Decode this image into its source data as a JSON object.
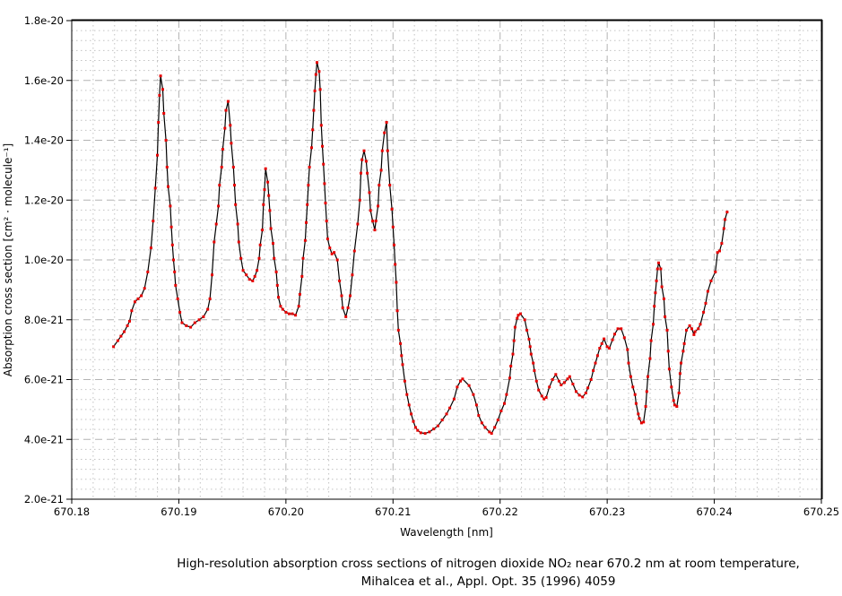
{
  "caption": {
    "line1": "High-resolution absorption cross sections of nitrogen dioxide NO₂ near 670.2 nm at room temperature,",
    "line2": "Mihalcea et al., Appl. Opt. 35 (1996) 4059"
  },
  "chart_data": {
    "type": "line",
    "title": "",
    "xlabel": "Wavelength [nm]",
    "ylabel": "Absorption cross section [cm² · molecule⁻¹]",
    "legend": "none",
    "grid": {
      "major_color": "#b3b3b3",
      "minor_color": "#c2c2c2",
      "major_dash": "8,5",
      "minor_dash": "1.5,3.5",
      "x_minor_divisions": 5,
      "y_minor_divisions": 6
    },
    "x_axis": {
      "min": 670.18,
      "max": 670.25,
      "major_step": 0.01,
      "tick_labels": [
        "670.18",
        "670.19",
        "670.20",
        "670.21",
        "670.22",
        "670.23",
        "670.24",
        "670.25"
      ]
    },
    "y_axis": {
      "unit": "cm2/molecule",
      "min_e21": 2,
      "max_e21": 18,
      "major_step_e21": 2,
      "tick_labels": [
        "2.0e-21",
        "4.0e-21",
        "6.0e-21",
        "8.0e-21",
        "1.0e-20",
        "1.2e-20",
        "1.4e-20",
        "1.6e-20",
        "1.8e-20"
      ]
    },
    "series": [
      {
        "name": "NO2 absorption cross section",
        "line_color": "#000000",
        "marker": "square",
        "marker_color": "#e60000",
        "y_unit": "1e-21 cm2 / molecule",
        "points": [
          [
            670.1839,
            7.1
          ],
          [
            670.1843,
            7.3
          ],
          [
            670.1846,
            7.45
          ],
          [
            670.1849,
            7.6
          ],
          [
            670.1852,
            7.8
          ],
          [
            670.1854,
            7.95
          ],
          [
            670.1856,
            8.3
          ],
          [
            670.1859,
            8.6
          ],
          [
            670.1862,
            8.7
          ],
          [
            670.1865,
            8.8
          ],
          [
            670.1868,
            9.05
          ],
          [
            670.1871,
            9.6
          ],
          [
            670.1874,
            10.4
          ],
          [
            670.1876,
            11.3
          ],
          [
            670.1878,
            12.4
          ],
          [
            670.188,
            13.5
          ],
          [
            670.1881,
            14.6
          ],
          [
            670.1882,
            15.5
          ],
          [
            670.1883,
            16.15
          ],
          [
            670.1885,
            15.7
          ],
          [
            670.1886,
            14.9
          ],
          [
            670.1888,
            14.0
          ],
          [
            670.1889,
            13.1
          ],
          [
            670.189,
            12.45
          ],
          [
            670.1892,
            11.8
          ],
          [
            670.1893,
            11.1
          ],
          [
            670.1894,
            10.5
          ],
          [
            670.1895,
            10.0
          ],
          [
            670.1896,
            9.6
          ],
          [
            670.1897,
            9.15
          ],
          [
            670.1899,
            8.7
          ],
          [
            670.1901,
            8.25
          ],
          [
            670.1903,
            7.9
          ],
          [
            670.1907,
            7.8
          ],
          [
            670.1911,
            7.75
          ],
          [
            670.1915,
            7.9
          ],
          [
            670.1919,
            8.0
          ],
          [
            670.1923,
            8.1
          ],
          [
            670.1927,
            8.35
          ],
          [
            670.1929,
            8.7
          ],
          [
            670.1931,
            9.5
          ],
          [
            670.1933,
            10.6
          ],
          [
            670.1935,
            11.2
          ],
          [
            670.1937,
            11.8
          ],
          [
            670.1938,
            12.5
          ],
          [
            670.194,
            13.1
          ],
          [
            670.1941,
            13.7
          ],
          [
            670.1943,
            14.4
          ],
          [
            670.1944,
            15.0
          ],
          [
            670.1946,
            15.3
          ],
          [
            670.1948,
            14.5
          ],
          [
            670.1949,
            13.9
          ],
          [
            670.1951,
            13.1
          ],
          [
            670.1952,
            12.5
          ],
          [
            670.1953,
            11.85
          ],
          [
            670.1955,
            11.2
          ],
          [
            670.1956,
            10.6
          ],
          [
            670.1958,
            10.05
          ],
          [
            670.196,
            9.65
          ],
          [
            670.1963,
            9.5
          ],
          [
            670.1966,
            9.35
          ],
          [
            670.1969,
            9.3
          ],
          [
            670.1971,
            9.45
          ],
          [
            670.1973,
            9.65
          ],
          [
            670.1975,
            10.05
          ],
          [
            670.1976,
            10.5
          ],
          [
            670.1978,
            11.0
          ],
          [
            670.1979,
            11.85
          ],
          [
            670.198,
            12.35
          ],
          [
            670.1981,
            13.05
          ],
          [
            670.1983,
            12.6
          ],
          [
            670.1984,
            12.15
          ],
          [
            670.1985,
            11.65
          ],
          [
            670.1986,
            11.05
          ],
          [
            670.1988,
            10.55
          ],
          [
            670.1989,
            10.05
          ],
          [
            670.1991,
            9.6
          ],
          [
            670.1992,
            9.15
          ],
          [
            670.1993,
            8.75
          ],
          [
            670.1995,
            8.45
          ],
          [
            670.1997,
            8.35
          ],
          [
            670.2,
            8.25
          ],
          [
            670.2003,
            8.2
          ],
          [
            670.2006,
            8.2
          ],
          [
            670.2009,
            8.15
          ],
          [
            670.2012,
            8.45
          ],
          [
            670.2013,
            8.85
          ],
          [
            670.2015,
            9.45
          ],
          [
            670.2016,
            10.05
          ],
          [
            670.2018,
            10.65
          ],
          [
            670.2019,
            11.25
          ],
          [
            670.202,
            11.85
          ],
          [
            670.2021,
            12.5
          ],
          [
            670.2022,
            13.1
          ],
          [
            670.2024,
            13.75
          ],
          [
            670.2025,
            14.35
          ],
          [
            670.2026,
            15.0
          ],
          [
            670.2027,
            15.65
          ],
          [
            670.2028,
            16.2
          ],
          [
            670.2029,
            16.6
          ],
          [
            670.2031,
            16.3
          ],
          [
            670.2032,
            15.7
          ],
          [
            670.2033,
            14.5
          ],
          [
            670.2034,
            13.8
          ],
          [
            670.2035,
            13.2
          ],
          [
            670.2036,
            12.55
          ],
          [
            670.2037,
            11.9
          ],
          [
            670.2038,
            11.3
          ],
          [
            670.2039,
            10.7
          ],
          [
            670.2041,
            10.4
          ],
          [
            670.2043,
            10.2
          ],
          [
            670.2045,
            10.25
          ],
          [
            670.2048,
            10.0
          ],
          [
            670.205,
            9.3
          ],
          [
            670.2052,
            8.8
          ],
          [
            670.2053,
            8.4
          ],
          [
            670.2056,
            8.1
          ],
          [
            670.2058,
            8.4
          ],
          [
            670.206,
            8.8
          ],
          [
            670.2062,
            9.5
          ],
          [
            670.2064,
            10.3
          ],
          [
            670.2067,
            11.2
          ],
          [
            670.2069,
            12.0
          ],
          [
            670.207,
            12.9
          ],
          [
            670.2071,
            13.35
          ],
          [
            670.2073,
            13.65
          ],
          [
            670.2075,
            13.3
          ],
          [
            670.2076,
            12.9
          ],
          [
            670.2078,
            12.25
          ],
          [
            670.2079,
            11.65
          ],
          [
            670.2081,
            11.3
          ],
          [
            670.2083,
            11.0
          ],
          [
            670.2084,
            11.3
          ],
          [
            670.2086,
            11.8
          ],
          [
            670.2087,
            12.5
          ],
          [
            670.2089,
            13.0
          ],
          [
            670.209,
            13.65
          ],
          [
            670.2092,
            14.25
          ],
          [
            670.2094,
            14.6
          ],
          [
            670.2095,
            13.65
          ],
          [
            670.2097,
            12.5
          ],
          [
            670.2099,
            11.7
          ],
          [
            670.21,
            11.1
          ],
          [
            670.2101,
            10.5
          ],
          [
            670.2102,
            9.85
          ],
          [
            670.2103,
            9.25
          ],
          [
            670.2104,
            8.3
          ],
          [
            670.2105,
            7.65
          ],
          [
            670.2107,
            7.2
          ],
          [
            670.2108,
            6.8
          ],
          [
            670.2109,
            6.5
          ],
          [
            670.2111,
            5.95
          ],
          [
            670.2113,
            5.5
          ],
          [
            670.2115,
            5.15
          ],
          [
            670.2117,
            4.85
          ],
          [
            670.2119,
            4.6
          ],
          [
            670.2121,
            4.4
          ],
          [
            670.2123,
            4.3
          ],
          [
            670.2126,
            4.22
          ],
          [
            670.213,
            4.2
          ],
          [
            670.2134,
            4.25
          ],
          [
            670.2138,
            4.35
          ],
          [
            670.2142,
            4.45
          ],
          [
            670.2146,
            4.65
          ],
          [
            670.215,
            4.85
          ],
          [
            670.2153,
            5.05
          ],
          [
            670.2157,
            5.35
          ],
          [
            670.216,
            5.75
          ],
          [
            670.2163,
            5.95
          ],
          [
            670.2165,
            6.02
          ],
          [
            670.2171,
            5.8
          ],
          [
            670.2175,
            5.5
          ],
          [
            670.2178,
            5.15
          ],
          [
            670.218,
            4.8
          ],
          [
            670.2183,
            4.55
          ],
          [
            670.2186,
            4.4
          ],
          [
            670.219,
            4.25
          ],
          [
            670.2192,
            4.2
          ],
          [
            670.2195,
            4.4
          ],
          [
            670.2198,
            4.65
          ],
          [
            670.2201,
            4.95
          ],
          [
            670.2204,
            5.2
          ],
          [
            670.2206,
            5.5
          ],
          [
            670.2209,
            6.05
          ],
          [
            670.221,
            6.45
          ],
          [
            670.2212,
            6.85
          ],
          [
            670.2213,
            7.3
          ],
          [
            670.2214,
            7.75
          ],
          [
            670.2216,
            8.05
          ],
          [
            670.2217,
            8.15
          ],
          [
            670.2219,
            8.2
          ],
          [
            670.2223,
            8.0
          ],
          [
            670.2225,
            7.65
          ],
          [
            670.2227,
            7.35
          ],
          [
            670.2228,
            7.1
          ],
          [
            670.2229,
            6.85
          ],
          [
            670.2231,
            6.55
          ],
          [
            670.2232,
            6.3
          ],
          [
            670.2234,
            5.95
          ],
          [
            670.2236,
            5.65
          ],
          [
            670.2239,
            5.45
          ],
          [
            670.2241,
            5.35
          ],
          [
            670.2243,
            5.4
          ],
          [
            670.2246,
            5.75
          ],
          [
            670.2249,
            6.0
          ],
          [
            670.2252,
            6.17
          ],
          [
            670.2255,
            5.95
          ],
          [
            670.2257,
            5.82
          ],
          [
            670.226,
            5.9
          ],
          [
            670.2263,
            6.02
          ],
          [
            670.2265,
            6.1
          ],
          [
            670.2268,
            5.85
          ],
          [
            670.2271,
            5.6
          ],
          [
            670.2274,
            5.48
          ],
          [
            670.2277,
            5.42
          ],
          [
            670.228,
            5.55
          ],
          [
            670.2282,
            5.72
          ],
          [
            670.2285,
            6.0
          ],
          [
            670.2287,
            6.3
          ],
          [
            670.2289,
            6.55
          ],
          [
            670.2291,
            6.8
          ],
          [
            670.2293,
            7.05
          ],
          [
            670.2295,
            7.2
          ],
          [
            670.2297,
            7.36
          ],
          [
            670.23,
            7.1
          ],
          [
            670.2302,
            7.05
          ],
          [
            670.2305,
            7.33
          ],
          [
            670.2307,
            7.52
          ],
          [
            670.231,
            7.7
          ],
          [
            670.2313,
            7.7
          ],
          [
            670.2316,
            7.4
          ],
          [
            670.2319,
            7.0
          ],
          [
            670.232,
            6.55
          ],
          [
            670.2322,
            6.1
          ],
          [
            670.2324,
            5.75
          ],
          [
            670.2326,
            5.5
          ],
          [
            670.2327,
            5.2
          ],
          [
            670.2329,
            4.85
          ],
          [
            670.233,
            4.7
          ],
          [
            670.2332,
            4.55
          ],
          [
            670.2334,
            4.58
          ],
          [
            670.2336,
            5.1
          ],
          [
            670.2337,
            5.6
          ],
          [
            670.2338,
            6.1
          ],
          [
            670.234,
            6.7
          ],
          [
            670.2341,
            7.3
          ],
          [
            670.2343,
            7.85
          ],
          [
            670.2344,
            8.45
          ],
          [
            670.2345,
            8.9
          ],
          [
            670.2346,
            9.3
          ],
          [
            670.2347,
            9.7
          ],
          [
            670.2348,
            9.9
          ],
          [
            670.235,
            9.7
          ],
          [
            670.2351,
            9.1
          ],
          [
            670.2353,
            8.7
          ],
          [
            670.2354,
            8.1
          ],
          [
            670.2356,
            7.65
          ],
          [
            670.2357,
            6.95
          ],
          [
            670.2358,
            6.35
          ],
          [
            670.236,
            5.75
          ],
          [
            670.2362,
            5.3
          ],
          [
            670.2363,
            5.15
          ],
          [
            670.2365,
            5.1
          ],
          [
            670.2367,
            5.55
          ],
          [
            670.2368,
            6.2
          ],
          [
            670.2369,
            6.55
          ],
          [
            670.2371,
            6.95
          ],
          [
            670.2372,
            7.2
          ],
          [
            670.2374,
            7.65
          ],
          [
            670.2377,
            7.8
          ],
          [
            670.2379,
            7.7
          ],
          [
            670.2381,
            7.5
          ],
          [
            670.2382,
            7.6
          ],
          [
            670.2385,
            7.7
          ],
          [
            670.2387,
            7.85
          ],
          [
            670.239,
            8.25
          ],
          [
            670.2392,
            8.55
          ],
          [
            670.2394,
            8.95
          ],
          [
            670.2397,
            9.3
          ],
          [
            670.2401,
            9.6
          ],
          [
            670.2403,
            10.25
          ],
          [
            670.2405,
            10.3
          ],
          [
            670.2407,
            10.55
          ],
          [
            670.2409,
            11.05
          ],
          [
            670.241,
            11.35
          ],
          [
            670.2412,
            11.6
          ]
        ]
      }
    ]
  }
}
